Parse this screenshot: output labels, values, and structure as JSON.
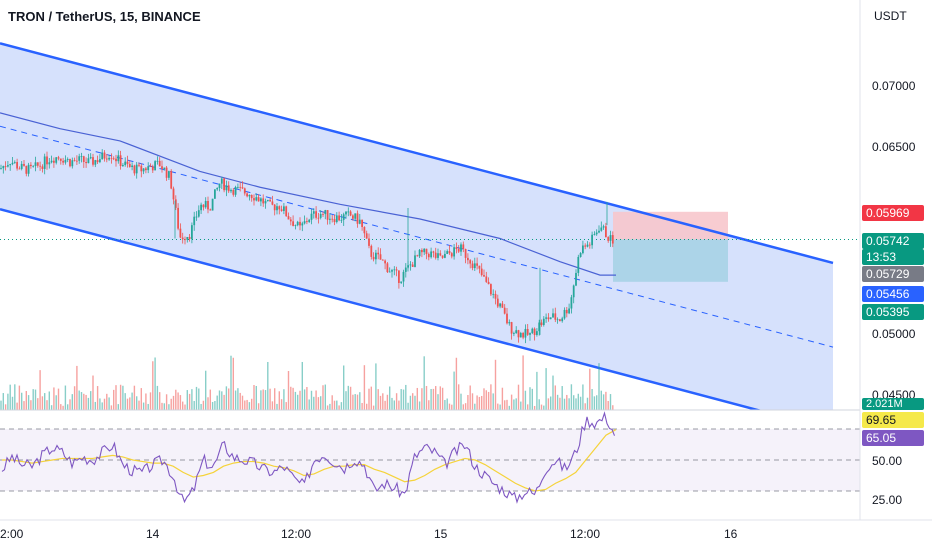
{
  "header": {
    "symbol": "TRON / TetherUS, 15, BINANCE"
  },
  "price_axis": {
    "unit": "USDT",
    "labels": [
      "0.07000",
      "0.06500",
      "0.05000",
      "0.04500"
    ]
  },
  "price_tags": {
    "target": "0.05969",
    "last": "0.05742",
    "countdown": "13:53",
    "open": "0.05729",
    "ma": "0.05456",
    "stop": "0.05395",
    "volume": "2.021M"
  },
  "rsi": {
    "ma_value": "69.65",
    "value": "65.05",
    "labels": [
      "50.00",
      "25.00"
    ]
  },
  "time_axis": {
    "labels": [
      "2:00",
      "14",
      "12:00",
      "15",
      "12:00",
      "16"
    ]
  },
  "colors": {
    "up": "#26a69a",
    "down": "#ef5350",
    "channel": "#2962ff",
    "channel_fill": "#cfdcfb",
    "ma_line": "#4a62d4",
    "rsi_line": "#7e57c2",
    "rsi_ma": "#f5d33a",
    "target_zone": "#f7c7cc",
    "stop_zone": "#a7d3e6"
  },
  "chart_data": {
    "type": "candlestick",
    "symbol": "TRON / TetherUS",
    "interval": "15",
    "exchange": "BINANCE",
    "close_path_x": [
      0,
      10,
      20,
      30,
      40,
      50,
      60,
      70,
      80,
      90,
      100,
      110,
      120,
      130,
      140,
      150,
      160,
      170,
      180,
      190,
      200,
      210,
      220,
      230,
      240,
      250,
      260,
      270,
      280,
      290,
      300,
      310,
      320,
      330,
      340,
      350,
      360,
      370,
      380,
      390,
      400,
      410,
      420,
      430,
      440,
      450,
      460,
      470,
      480,
      490,
      500,
      510,
      520,
      530,
      540,
      550,
      560,
      570,
      580,
      590,
      600,
      610
    ],
    "close_path_y": [
      0.0632,
      0.0639,
      0.0633,
      0.0631,
      0.0635,
      0.0641,
      0.0642,
      0.0638,
      0.0639,
      0.0637,
      0.0641,
      0.0645,
      0.0638,
      0.0633,
      0.0631,
      0.0634,
      0.0636,
      0.0625,
      0.0576,
      0.0579,
      0.0602,
      0.0601,
      0.0621,
      0.0616,
      0.0614,
      0.0612,
      0.0607,
      0.0601,
      0.0602,
      0.0591,
      0.0583,
      0.0593,
      0.0596,
      0.0593,
      0.0592,
      0.0594,
      0.0589,
      0.0563,
      0.0558,
      0.0549,
      0.0542,
      0.0553,
      0.0562,
      0.0563,
      0.0558,
      0.0563,
      0.0567,
      0.0558,
      0.0547,
      0.0533,
      0.0519,
      0.0502,
      0.0497,
      0.0496,
      0.0505,
      0.0511,
      0.0509,
      0.0521,
      0.0566,
      0.0571,
      0.0586,
      0.0574
    ],
    "channel_upper": [
      [
        0,
        0.0735
      ],
      [
        833,
        0.0555
      ]
    ],
    "channel_lower": [
      [
        0,
        0.0599
      ],
      [
        833,
        0.0418
      ]
    ],
    "channel_mid": [
      [
        0,
        0.0667
      ],
      [
        833,
        0.0486
      ]
    ],
    "moving_average": [
      [
        0,
        0.0678
      ],
      [
        60,
        0.0665
      ],
      [
        120,
        0.0655
      ],
      [
        200,
        0.063
      ],
      [
        260,
        0.0617
      ],
      [
        340,
        0.0603
      ],
      [
        420,
        0.0591
      ],
      [
        500,
        0.0575
      ],
      [
        560,
        0.0556
      ],
      [
        600,
        0.0545
      ],
      [
        616,
        0.0545
      ]
    ],
    "rsi_series": [
      44,
      52,
      47,
      46,
      53,
      58,
      55,
      48,
      52,
      50,
      55,
      60,
      47,
      43,
      42,
      47,
      50,
      40,
      22,
      30,
      50,
      45,
      60,
      52,
      50,
      48,
      44,
      42,
      46,
      38,
      33,
      50,
      54,
      49,
      45,
      51,
      47,
      30,
      35,
      32,
      28,
      52,
      58,
      55,
      47,
      55,
      60,
      46,
      40,
      34,
      30,
      25,
      30,
      28,
      45,
      50,
      44,
      55,
      76,
      74,
      78,
      65
    ],
    "rsi_ma_series": [
      50,
      50,
      49,
      48,
      49,
      50,
      51,
      51,
      51,
      51,
      52,
      53,
      52,
      50,
      49,
      48,
      48,
      46,
      42,
      39,
      40,
      42,
      46,
      48,
      49,
      49,
      48,
      46,
      45,
      43,
      40,
      41,
      44,
      46,
      46,
      47,
      47,
      44,
      42,
      39,
      36,
      37,
      40,
      44,
      47,
      49,
      51,
      50,
      47,
      43,
      39,
      35,
      32,
      30,
      31,
      35,
      38,
      42,
      50,
      58,
      66,
      69.65
    ],
    "rsi_levels": [
      70,
      50,
      30
    ],
    "x_ticks": [
      "2:00",
      "14",
      "12:00",
      "15",
      "12:00",
      "16"
    ]
  }
}
